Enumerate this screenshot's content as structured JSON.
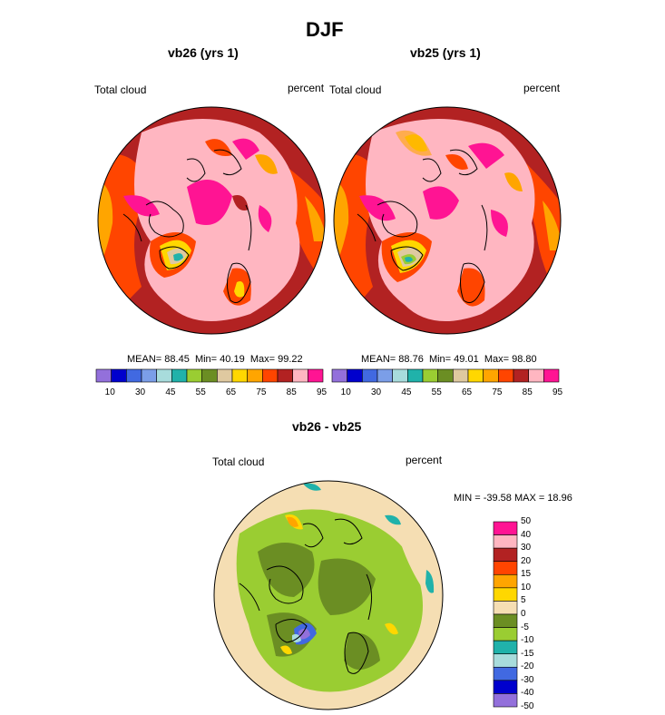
{
  "figure": {
    "title": "DJF"
  },
  "panels": [
    {
      "id": "vb26",
      "subtitle": "vb26 (yrs 1)",
      "left_label": "Total cloud",
      "right_label": "percent",
      "stats": {
        "mean_label": "MEAN=",
        "mean": "88.45",
        "min_label": "Min=",
        "min": "40.19",
        "max_label": "Max=",
        "max": "99.22"
      }
    },
    {
      "id": "vb25",
      "subtitle": "vb25 (yrs 1)",
      "left_label": "Total cloud",
      "right_label": "percent",
      "stats": {
        "mean_label": "MEAN=",
        "mean": "88.76",
        "min_label": "Min=",
        "min": "49.01",
        "max_label": "Max=",
        "max": "98.80"
      }
    }
  ],
  "top_colorbar": {
    "colors": [
      "#9370db",
      "#0000cd",
      "#4169e1",
      "#7b9ee8",
      "#a8dcdc",
      "#20b2aa",
      "#9acd32",
      "#6b8e23",
      "#dfc9a0",
      "#ffd700",
      "#ffa500",
      "#ff4500",
      "#b22222",
      "#ffb6c1",
      "#ff1493"
    ],
    "tick_labels": [
      "10",
      "30",
      "45",
      "55",
      "65",
      "75",
      "85",
      "95"
    ]
  },
  "diff_panel": {
    "subtitle": "vb26 - vb25",
    "left_label": "Total cloud",
    "right_label": "percent",
    "minmax": "MIN = -39.58 MAX =  18.96"
  },
  "diff_colorbar": {
    "colors_top_to_bottom": [
      "#ff1493",
      "#ffb6c1",
      "#b22222",
      "#ff4500",
      "#ffa500",
      "#ffd700",
      "#f5deb3",
      "#6b8e23",
      "#9acd32",
      "#20b2aa",
      "#a8dcdc",
      "#4169e1",
      "#0000cd",
      "#9370db"
    ],
    "tick_labels": [
      "50",
      "40",
      "30",
      "20",
      "15",
      "10",
      "5",
      "0",
      "-5",
      "-10",
      "-15",
      "-20",
      "-30",
      "-40",
      "-50"
    ]
  }
}
